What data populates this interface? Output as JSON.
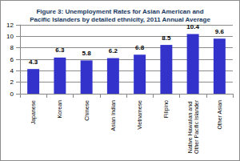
{
  "chart_data": {
    "type": "bar",
    "title": "Figure 3: Unemployment Rates for Asian American and\nPacific Islanders by detailed ethnicity, 2011 Annual Average",
    "categories": [
      "Japanese",
      "Korean",
      "Chinese",
      "Asian Indian",
      "Vietnamese",
      "Filipino",
      "Native Hawaiian and Other Pacific Islander",
      "Other Asian"
    ],
    "values": [
      4.3,
      6.3,
      5.8,
      6.2,
      6.8,
      8.5,
      10.4,
      9.6
    ],
    "color": "#3333cc",
    "ylim": [
      0,
      12
    ],
    "yticks": [
      0,
      2,
      4,
      6,
      8,
      10,
      12
    ],
    "grid": true,
    "data_labels": true
  }
}
